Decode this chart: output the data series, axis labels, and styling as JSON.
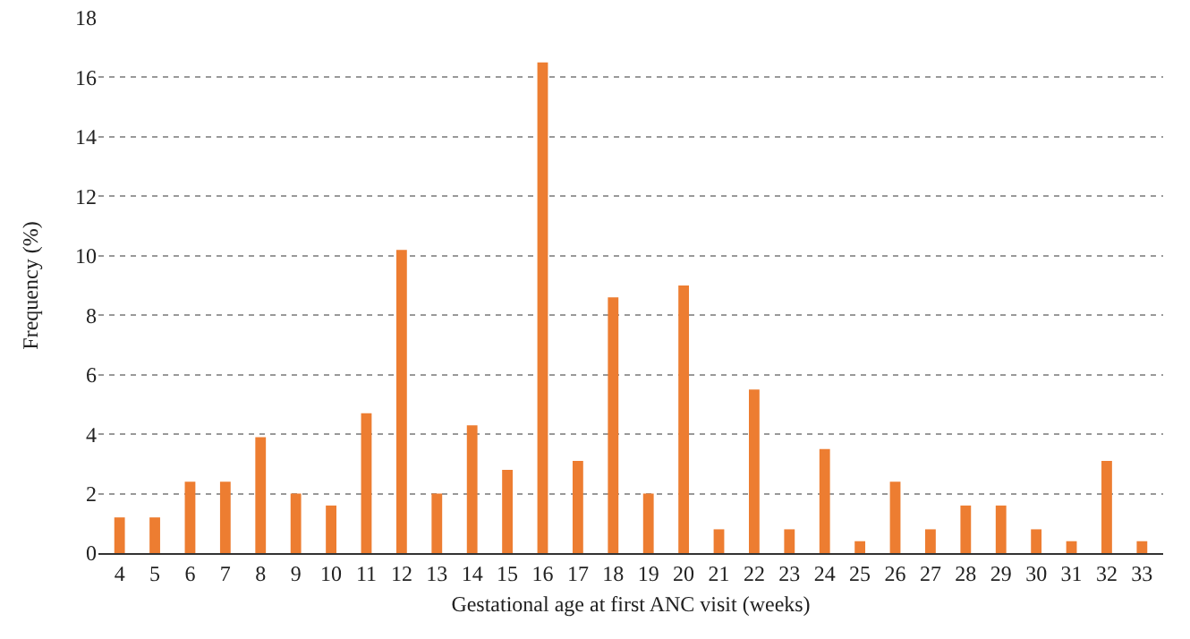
{
  "chart_data": {
    "type": "bar",
    "xlabel": "Gestational age at first ANC visit (weeks)",
    "ylabel": "Frequency (%)",
    "categories": [
      "4",
      "5",
      "6",
      "7",
      "8",
      "9",
      "10",
      "11",
      "12",
      "13",
      "14",
      "15",
      "16",
      "17",
      "18",
      "19",
      "20",
      "21",
      "22",
      "23",
      "24",
      "25",
      "26",
      "27",
      "28",
      "29",
      "30",
      "31",
      "32",
      "33"
    ],
    "values": [
      1.2,
      1.2,
      2.4,
      2.4,
      3.9,
      2.0,
      1.6,
      4.7,
      10.2,
      2.0,
      4.3,
      2.8,
      16.5,
      3.1,
      8.6,
      2.0,
      9.0,
      0.8,
      5.5,
      0.8,
      3.5,
      0.4,
      2.4,
      0.8,
      1.6,
      1.6,
      0.8,
      0.4,
      3.1,
      0.4
    ],
    "color": "#ed7d31",
    "ylim": [
      0,
      18
    ],
    "yticks": [
      0,
      2,
      4,
      6,
      8,
      10,
      12,
      14,
      16,
      18
    ],
    "grid": "y",
    "legend": false
  }
}
